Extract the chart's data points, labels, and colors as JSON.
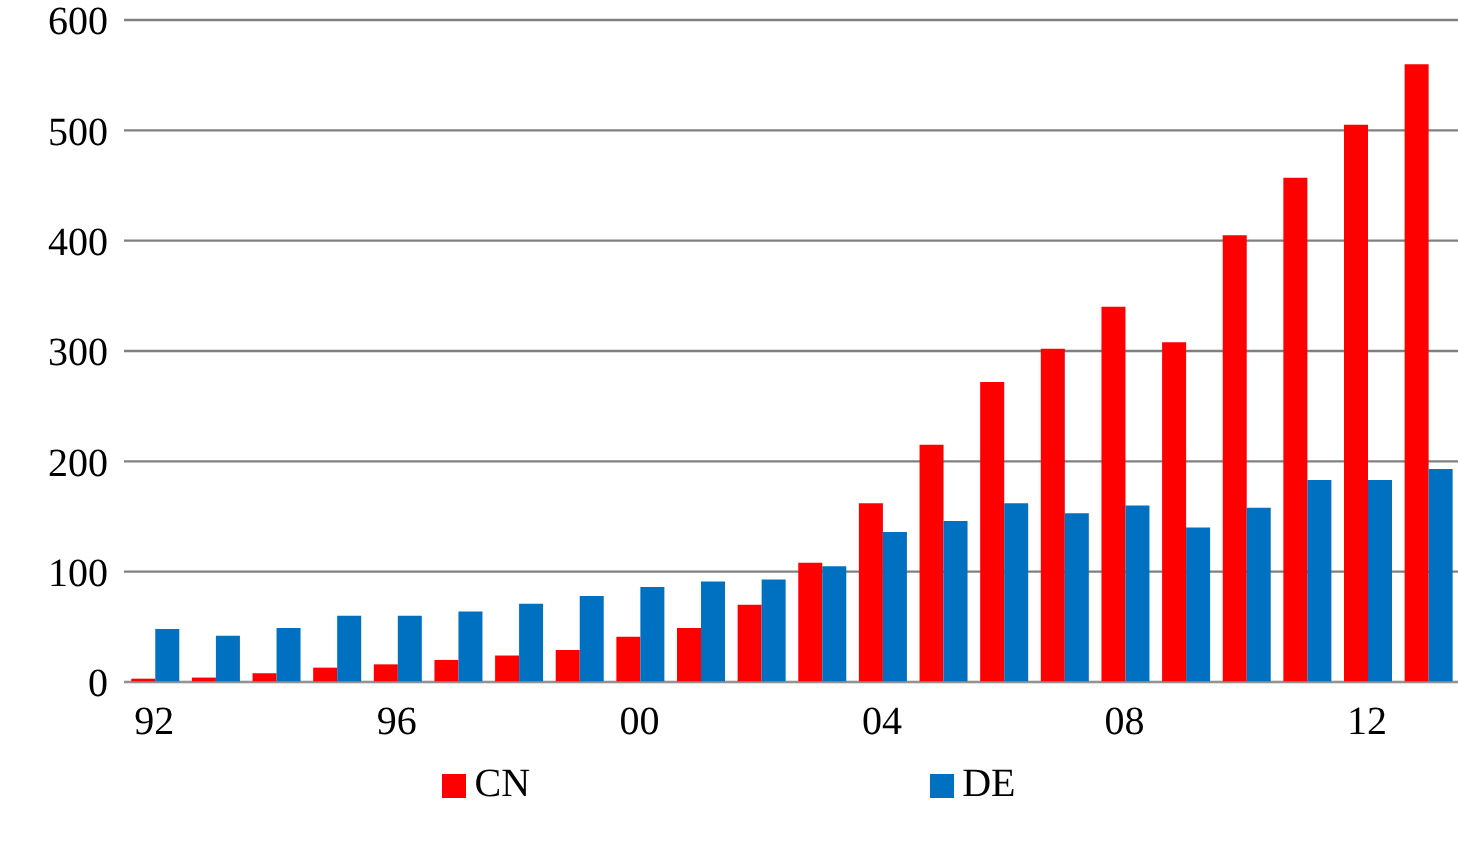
{
  "chart_data": {
    "type": "bar",
    "categories": [
      "92",
      null,
      null,
      null,
      "96",
      null,
      null,
      null,
      "00",
      null,
      null,
      null,
      "04",
      null,
      null,
      null,
      "08",
      null,
      null,
      null,
      "12",
      null
    ],
    "series": [
      {
        "name": "CN",
        "color": "#ff0000",
        "values": [
          3,
          4,
          8,
          13,
          16,
          20,
          24,
          29,
          41,
          49,
          70,
          108,
          162,
          215,
          272,
          302,
          340,
          308,
          405,
          457,
          505,
          560
        ]
      },
      {
        "name": "DE",
        "color": "#0070c0",
        "values": [
          48,
          42,
          49,
          60,
          60,
          64,
          71,
          78,
          86,
          91,
          93,
          105,
          136,
          146,
          162,
          153,
          160,
          140,
          158,
          183,
          183,
          193
        ]
      }
    ],
    "ylim": [
      0,
      600
    ],
    "yticks": [
      0,
      100,
      200,
      300,
      400,
      500,
      600
    ],
    "grid": "y",
    "legend": "bottom"
  }
}
